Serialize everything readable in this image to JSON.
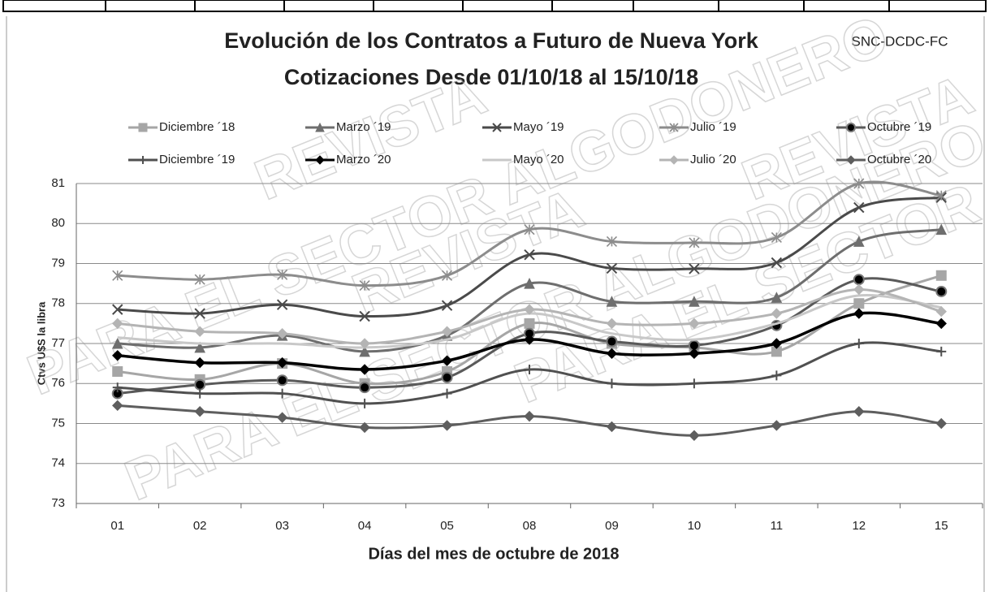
{
  "chart_data": {
    "type": "line",
    "title": "Evolución de los Contratos a Futuro de Nueva York",
    "subtitle": "Cotizaciones Desde 01/10/18 al 15/10/18",
    "source": "SNC-DCDC-FC",
    "watermark": [
      "REVISTA",
      "PARA EL SECTOR ALGODONERO"
    ],
    "x_label": "Días del mes de octubre de 2018",
    "y_label": "Ctvs U$S la libra",
    "categories": [
      "01",
      "02",
      "03",
      "04",
      "05",
      "08",
      "09",
      "10",
      "11",
      "12",
      "15"
    ],
    "ylim": [
      73,
      81
    ],
    "yticks": [
      73,
      74,
      75,
      76,
      77,
      78,
      79,
      80,
      81
    ],
    "grid": true,
    "legend": "top",
    "series": [
      {
        "name": "Diciembre ´18",
        "color": "#a6a6a6",
        "marker": "square",
        "values": [
          76.3,
          76.1,
          76.5,
          76.0,
          76.3,
          77.5,
          77.0,
          76.9,
          76.8,
          78.0,
          78.7
        ]
      },
      {
        "name": "Marzo ´19",
        "color": "#6e6e6e",
        "marker": "triangle",
        "values": [
          77.0,
          76.9,
          77.2,
          76.8,
          77.2,
          78.5,
          78.05,
          78.05,
          78.15,
          79.55,
          79.85
        ]
      },
      {
        "name": "Mayo ´19",
        "color": "#4a4a4a",
        "marker": "x",
        "values": [
          77.85,
          77.75,
          77.97,
          77.68,
          77.95,
          79.22,
          78.88,
          78.87,
          79.02,
          80.4,
          80.65
        ]
      },
      {
        "name": "Julio ´19",
        "color": "#8c8c8c",
        "marker": "star",
        "values": [
          78.7,
          78.6,
          78.72,
          78.45,
          78.7,
          79.85,
          79.55,
          79.52,
          79.65,
          81.0,
          80.7
        ]
      },
      {
        "name": "Octubre ´19",
        "color": "#5a5a5a",
        "marker": "circle",
        "values": [
          75.75,
          75.97,
          76.08,
          75.9,
          76.15,
          77.25,
          77.05,
          76.95,
          77.45,
          78.6,
          78.3
        ]
      },
      {
        "name": "Diciembre ´19",
        "color": "#505050",
        "marker": "plus",
        "values": [
          75.9,
          75.75,
          75.75,
          75.5,
          75.75,
          76.35,
          76.0,
          76.0,
          76.2,
          77.0,
          76.8
        ]
      },
      {
        "name": "Marzo ´20",
        "color": "#000000",
        "marker": "diamond",
        "values": [
          76.7,
          76.52,
          76.52,
          76.35,
          76.57,
          77.1,
          76.75,
          76.75,
          77.0,
          77.75,
          77.5
        ]
      },
      {
        "name": "Mayo ´20",
        "color": "#c8c8c8",
        "marker": "none",
        "values": [
          77.15,
          77.0,
          77.0,
          76.9,
          77.1,
          77.75,
          77.25,
          77.1,
          77.5,
          78.2,
          77.9
        ]
      },
      {
        "name": "Julio ´20",
        "color": "#b4b4b4",
        "marker": "diamond",
        "values": [
          77.5,
          77.3,
          77.25,
          77.0,
          77.3,
          77.85,
          77.5,
          77.5,
          77.75,
          78.35,
          77.8
        ]
      },
      {
        "name": "Octubre ´20",
        "color": "#5e5e5e",
        "marker": "diamond",
        "values": [
          75.45,
          75.3,
          75.15,
          74.9,
          74.95,
          75.18,
          74.92,
          74.7,
          74.95,
          75.3,
          75.0
        ]
      }
    ]
  }
}
